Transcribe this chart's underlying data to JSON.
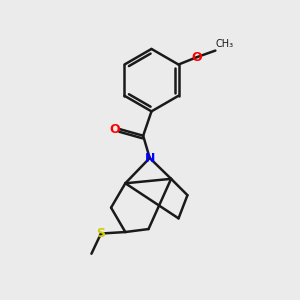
{
  "bg_color": "#ebebeb",
  "bond_color": "#1a1a1a",
  "bond_width": 1.8,
  "N_color": "#0000ff",
  "O_color": "#ff0000",
  "S_color": "#cccc00",
  "figsize": [
    3.0,
    3.0
  ],
  "dpi": 100,
  "xlim": [
    0,
    10
  ],
  "ylim": [
    0,
    10
  ]
}
